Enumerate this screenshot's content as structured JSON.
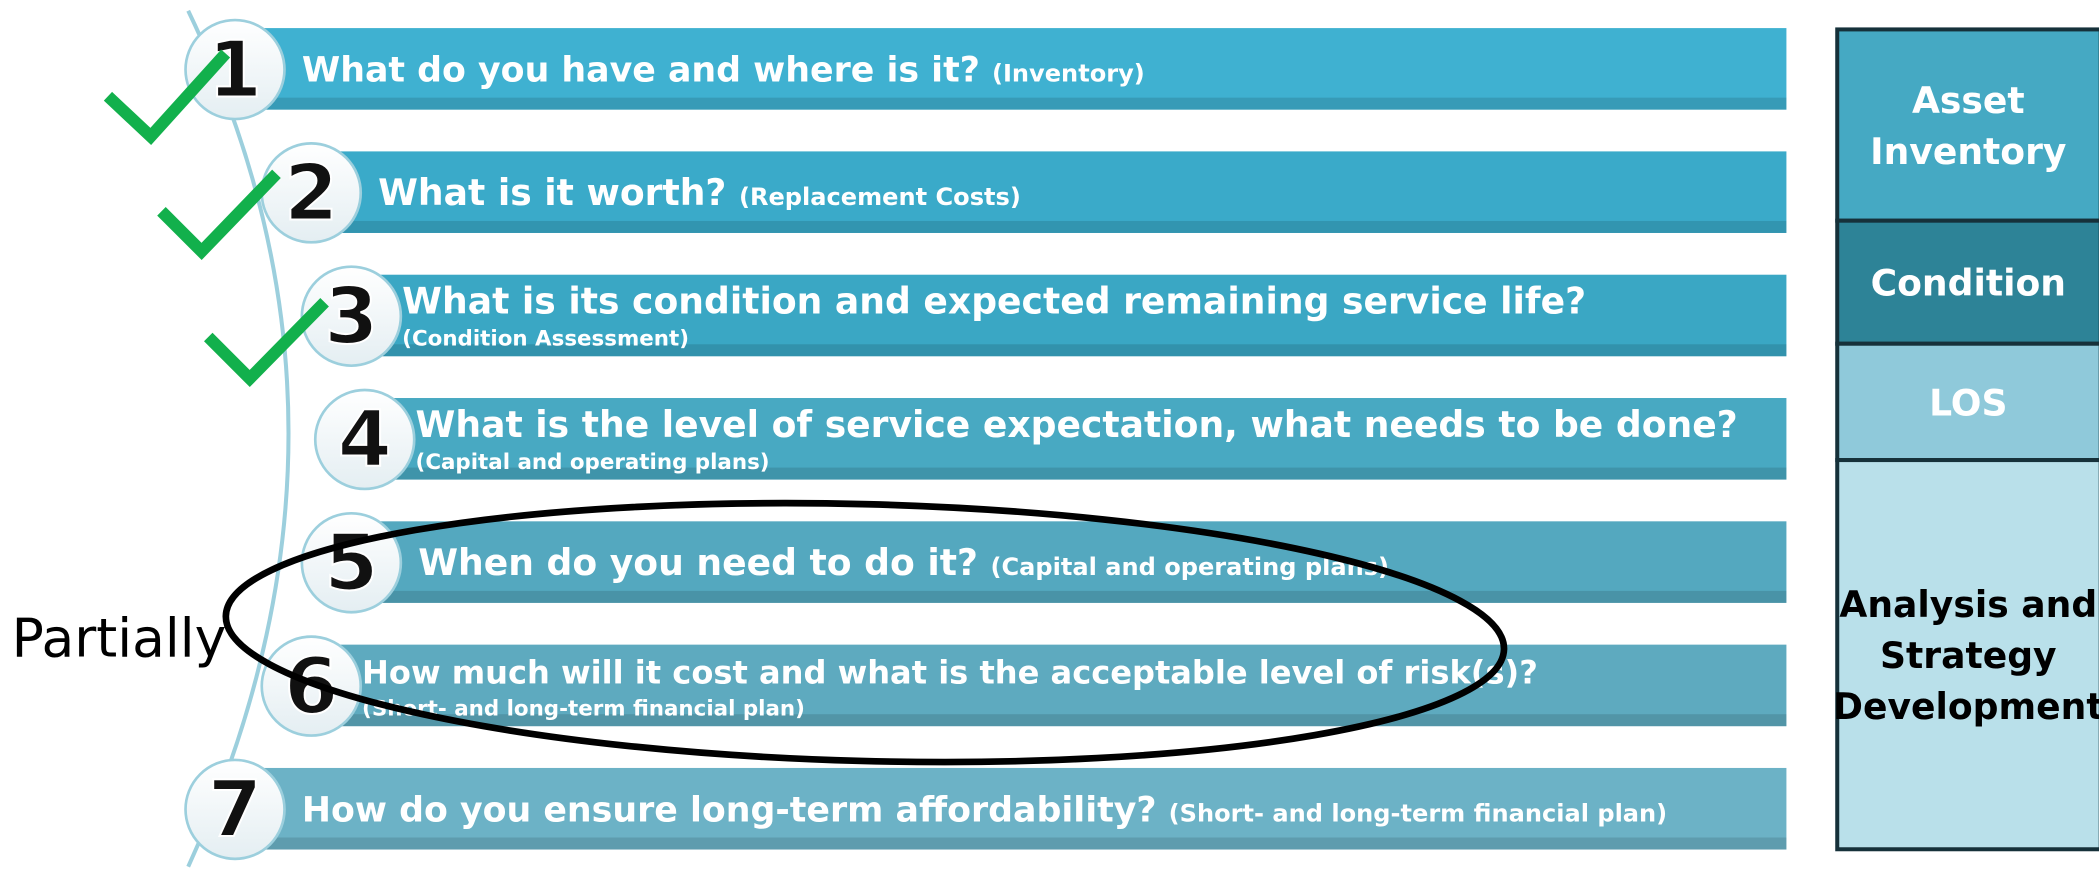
{
  "steps": [
    {
      "number": "1",
      "question": "What do you have and where is it?",
      "detail": "(Inventory)"
    },
    {
      "number": "2",
      "question": "What is it worth?",
      "detail": "(Replacement Costs)"
    },
    {
      "number": "3",
      "question": "What is its condition and expected remaining service life?",
      "detail": "(Condition Assessment)"
    },
    {
      "number": "4",
      "question": "What is the level of service expectation, what needs to be done?",
      "detail": "(Capital and operating plans)"
    },
    {
      "number": "5",
      "question": "When do you need to do it?",
      "detail": "(Capital and operating plans)"
    },
    {
      "number": "6",
      "question": "How much will it cost and what is the acceptable level of risk(s)?",
      "detail": "(Short- and long-term financial plan)"
    },
    {
      "number": "7",
      "question": "How do you ensure long-term affordability?",
      "detail": "(Short- and long-term financial plan)"
    }
  ],
  "sidebar": [
    {
      "lines": [
        "Asset",
        "Inventory"
      ]
    },
    {
      "lines": [
        "Condition"
      ]
    },
    {
      "lines": [
        "LOS"
      ]
    },
    {
      "lines": [
        "Analysis and",
        "Strategy",
        "Development"
      ]
    }
  ],
  "annotation": "Partially"
}
